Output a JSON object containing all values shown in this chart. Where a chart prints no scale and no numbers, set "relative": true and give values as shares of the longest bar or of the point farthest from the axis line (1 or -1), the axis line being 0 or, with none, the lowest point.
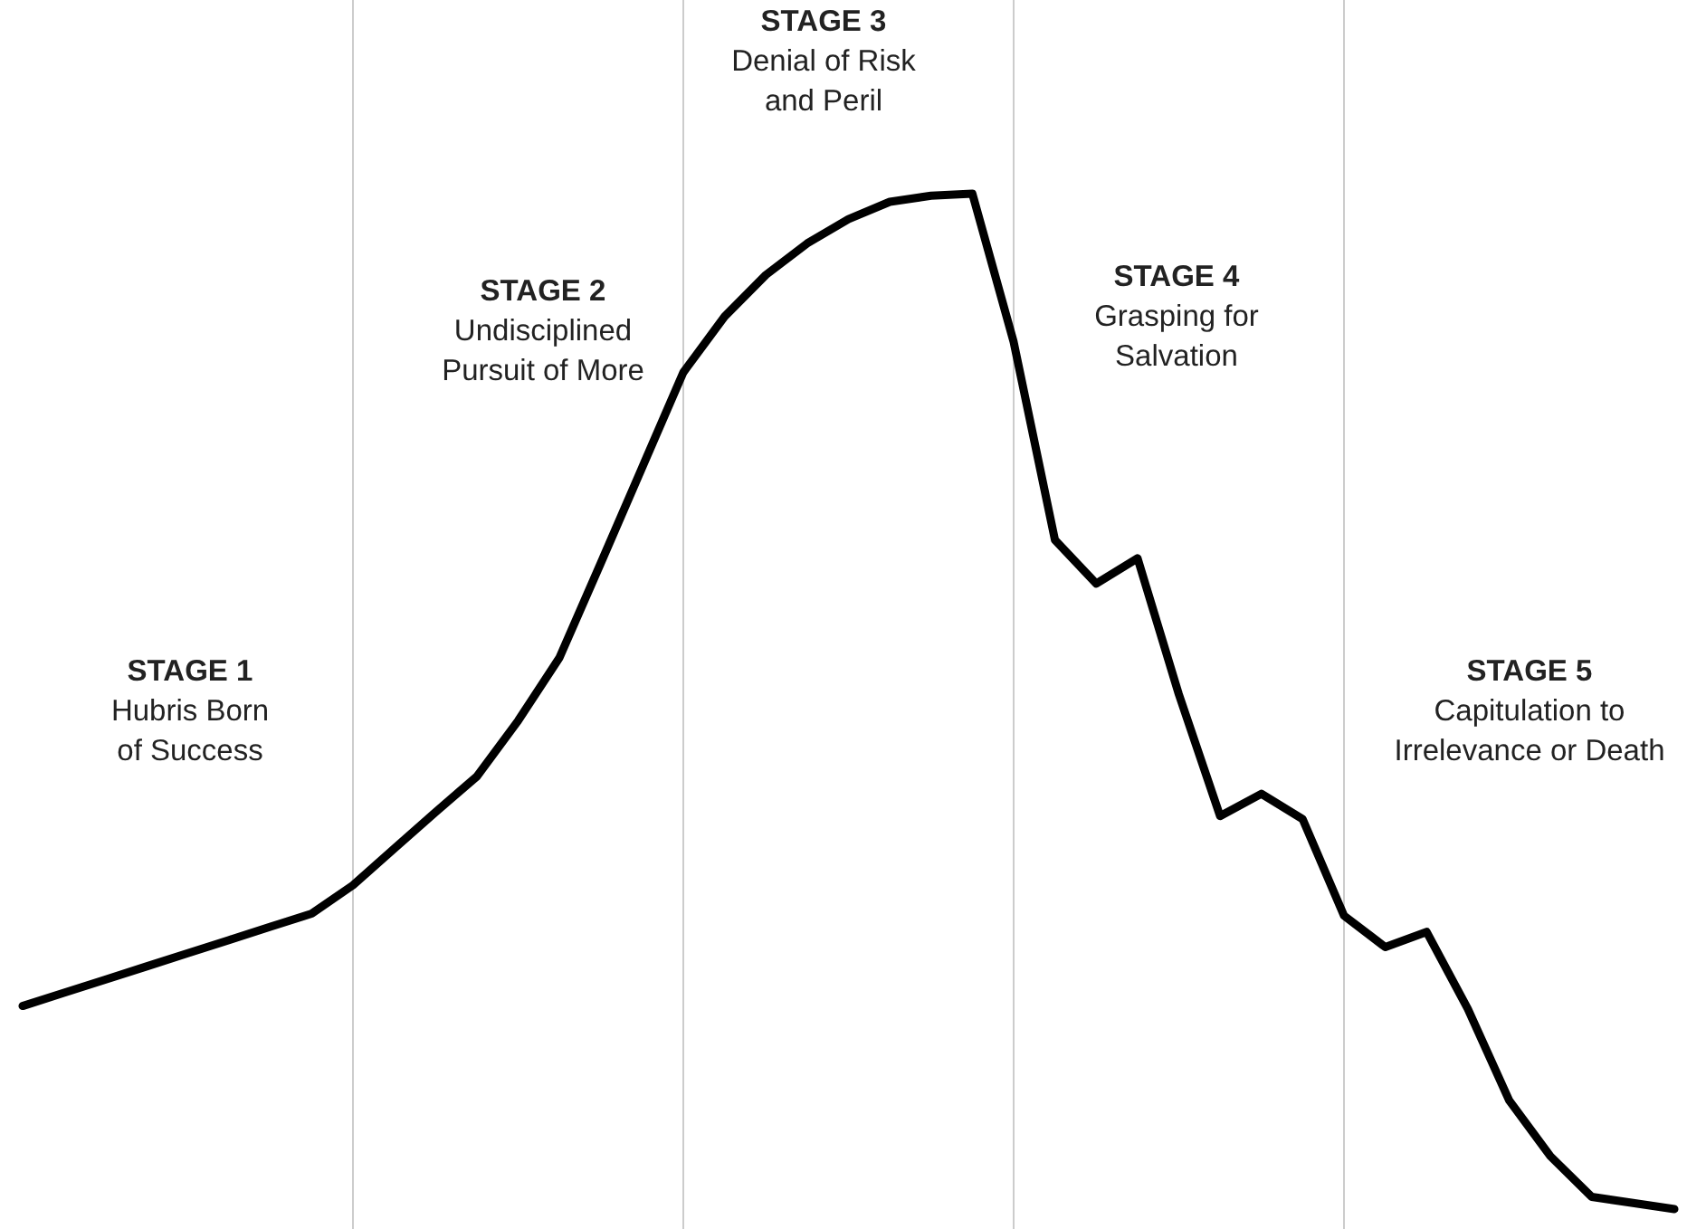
{
  "chart_data": {
    "type": "line",
    "relative": true,
    "grid": "x",
    "marker": "none",
    "line_style": "solid",
    "categories": [
      null,
      null,
      null,
      null,
      null,
      null,
      null,
      null,
      null,
      null,
      null,
      null,
      null,
      null,
      null,
      null,
      null,
      null,
      null,
      null,
      null,
      null,
      null,
      null,
      null,
      null,
      null,
      null,
      null,
      null,
      null,
      null,
      null,
      null,
      null,
      null,
      null,
      null,
      null,
      null,
      null
    ],
    "series": [
      {
        "color": "#000000",
        "values": [
          0.2,
          0.213,
          0.226,
          0.239,
          0.252,
          0.265,
          0.278,
          0.291,
          0.319,
          0.355,
          0.391,
          0.426,
          0.481,
          0.543,
          0.636,
          0.73,
          0.824,
          0.879,
          0.92,
          0.951,
          0.975,
          0.992,
          0.998,
          1,
          0.854,
          0.659,
          0.616,
          0.641,
          0.507,
          0.387,
          0.409,
          0.384,
          0.289,
          0.258,
          0.273,
          0.197,
          0.107,
          0.052,
          0.012,
          0.006,
          0
        ]
      }
    ],
    "annotations": [
      "STAGE 1\nHubris Born\nof Success",
      "STAGE 2\nUndisciplined\nPursuit of More",
      "STAGE 3\nDenial of Risk\nand Peril",
      "STAGE 4\nGrasping for\nSalvation",
      "STAGE 5\nCapitulation to\nIrrelevance or Death"
    ]
  }
}
